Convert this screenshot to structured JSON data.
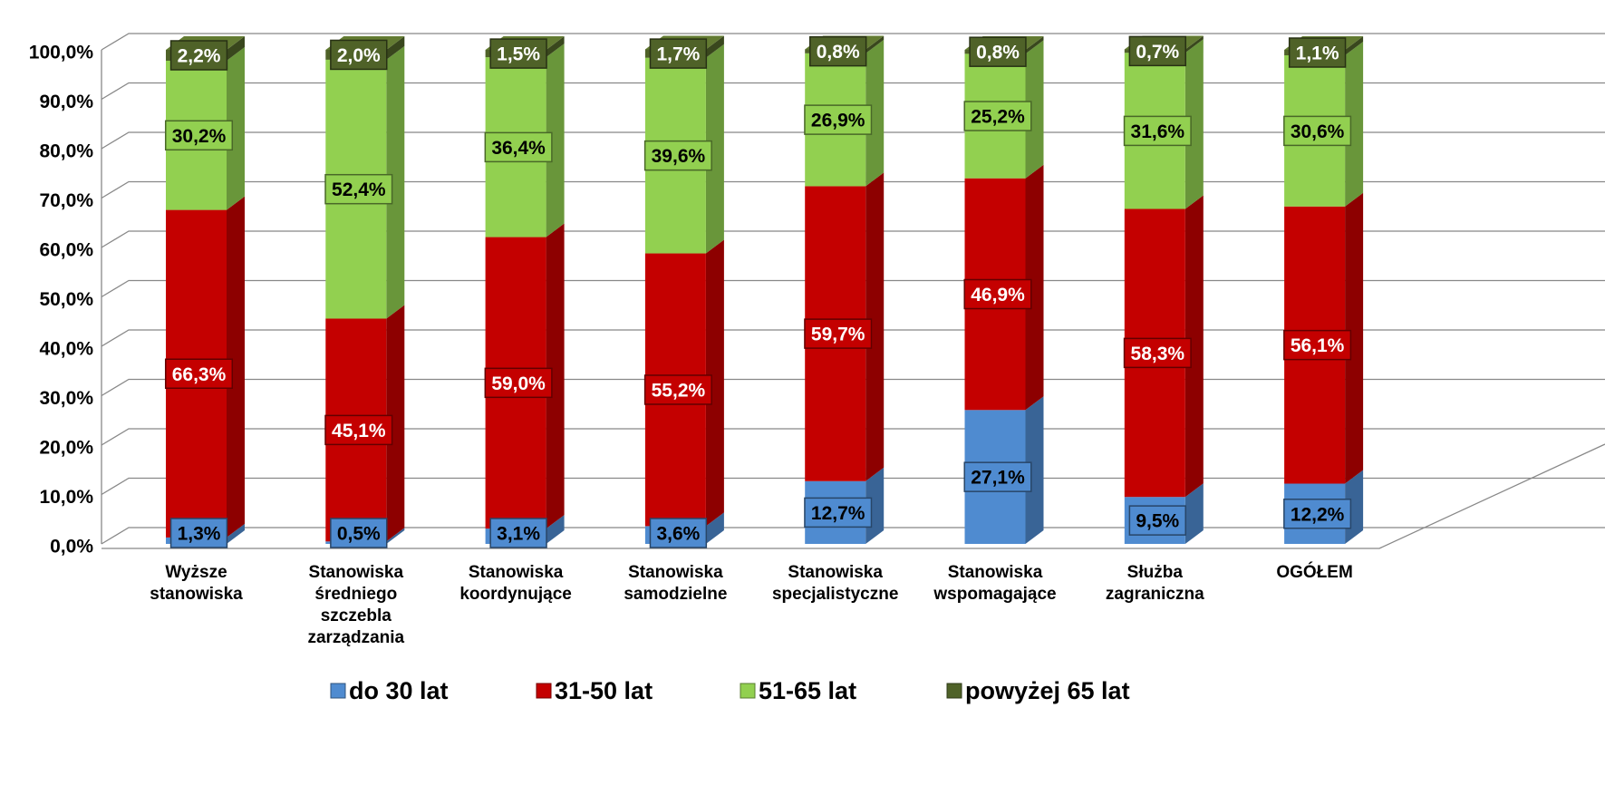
{
  "chart_data": {
    "type": "stacked_bar_3d",
    "categories": [
      "Wyższe stanowiska",
      "Stanowiska średniego szczebla zarządzania",
      "Stanowiska koordynujące",
      "Stanowiska samodzielne",
      "Stanowiska specjalistyczne",
      "Stanowiska wspomagające",
      "Służba zagraniczna",
      "OGÓŁEM"
    ],
    "series": [
      {
        "name": "do 30 lat",
        "color": "#4f8bd0",
        "values": [
          1.3,
          0.5,
          3.1,
          3.6,
          12.7,
          27.1,
          9.5,
          12.2
        ],
        "value_labels": [
          "1,3%",
          "0,5%",
          "3,1%",
          "3,6%",
          "12,7%",
          "27,1%",
          "9,5%",
          "12,2%"
        ]
      },
      {
        "name": "31-50 lat",
        "color": "#c40000",
        "values": [
          66.3,
          45.1,
          59.0,
          55.2,
          59.7,
          46.9,
          58.3,
          56.1
        ],
        "value_labels": [
          "66,3%",
          "45,1%",
          "59,0%",
          "55,2%",
          "59,7%",
          "46,9%",
          "58,3%",
          "56,1%"
        ]
      },
      {
        "name": "51-65 lat",
        "color": "#92d050",
        "values": [
          30.2,
          52.4,
          36.4,
          39.6,
          26.9,
          25.2,
          31.6,
          30.6
        ],
        "value_labels": [
          "30,2%",
          "52,4%",
          "36,4%",
          "39,6%",
          "26,9%",
          "25,2%",
          "31,6%",
          "30,6%"
        ]
      },
      {
        "name": "powyżej 65 lat",
        "color": "#4f6228",
        "values": [
          2.2,
          2.0,
          1.5,
          1.7,
          0.8,
          0.8,
          0.7,
          1.1
        ],
        "value_labels": [
          "2,2%",
          "2,0%",
          "1,5%",
          "1,7%",
          "0,8%",
          "0,8%",
          "0,7%",
          "1,1%"
        ]
      }
    ],
    "ylim": [
      0,
      100
    ],
    "yticks": [
      {
        "value": 0,
        "label": "0,0%"
      },
      {
        "value": 10,
        "label": "10,0%"
      },
      {
        "value": 20,
        "label": "20,0%"
      },
      {
        "value": 30,
        "label": "30,0%"
      },
      {
        "value": 40,
        "label": "40,0%"
      },
      {
        "value": 50,
        "label": "50,0%"
      },
      {
        "value": 60,
        "label": "60,0%"
      },
      {
        "value": 70,
        "label": "70,0%"
      },
      {
        "value": 80,
        "label": "80,0%"
      },
      {
        "value": 90,
        "label": "90,0%"
      },
      {
        "value": 100,
        "label": "100,0%"
      }
    ],
    "grid": true,
    "legend": "bottom"
  }
}
